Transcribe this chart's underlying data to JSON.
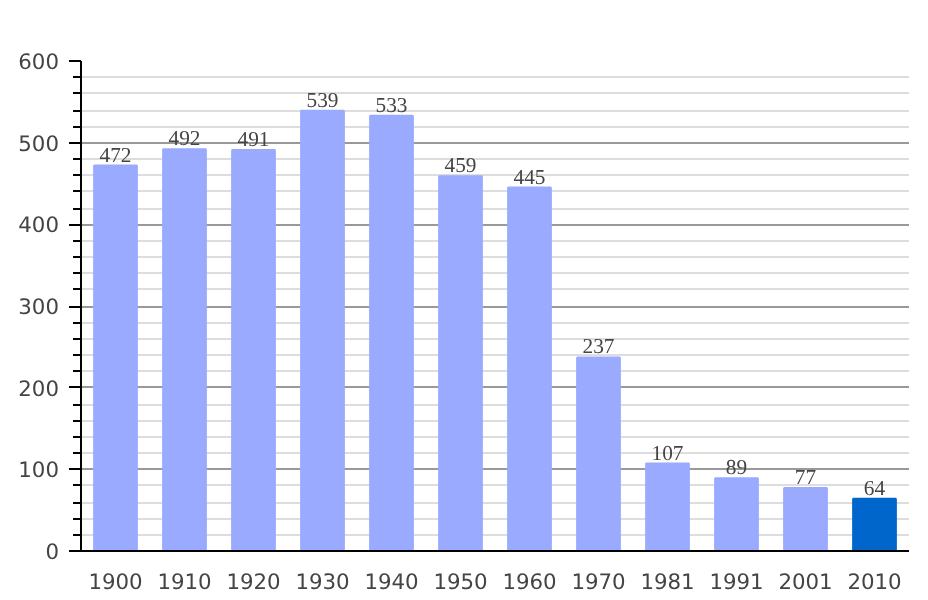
{
  "chart_data": {
    "type": "bar",
    "categories": [
      "1900",
      "1910",
      "1920",
      "1930",
      "1940",
      "1950",
      "1960",
      "1970",
      "1981",
      "1991",
      "2001",
      "2010"
    ],
    "values": [
      472,
      492,
      491,
      539,
      533,
      459,
      445,
      237,
      107,
      89,
      77,
      64
    ],
    "colors": [
      "#99aaff",
      "#99aaff",
      "#99aaff",
      "#99aaff",
      "#99aaff",
      "#99aaff",
      "#99aaff",
      "#99aaff",
      "#99aaff",
      "#99aaff",
      "#99aaff",
      "#0066cc"
    ],
    "ylim": [
      0,
      600
    ],
    "yticks": [
      0,
      100,
      200,
      300,
      400,
      500,
      600
    ],
    "grid": "y",
    "data_labels": true
  }
}
